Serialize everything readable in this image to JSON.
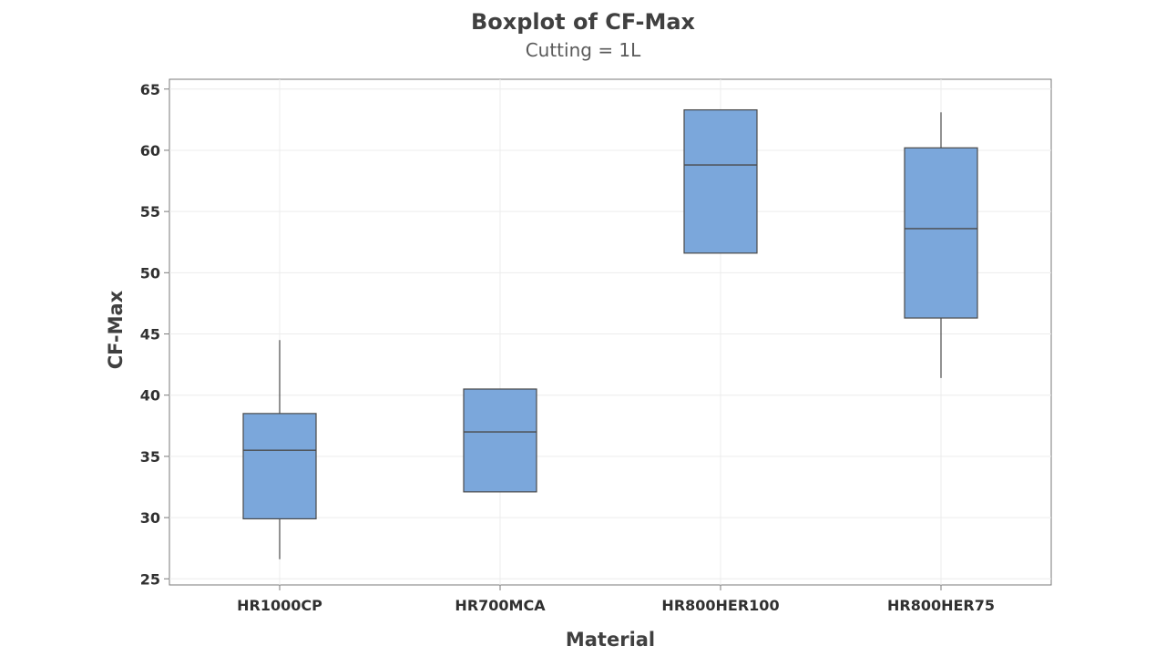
{
  "chart_data": {
    "type": "boxplot",
    "title": "Boxplot of CF-Max",
    "subtitle": "Cutting = 1L",
    "xlabel": "Material",
    "ylabel": "CF-Max",
    "ylim": [
      24.5,
      65.8
    ],
    "yticks": [
      25,
      30,
      35,
      40,
      45,
      50,
      55,
      60,
      65
    ],
    "grid": true,
    "box_color": "#7ba7db",
    "categories": [
      "HR1000CP",
      "HR700MCA",
      "HR800HER100",
      "HR800HER75"
    ],
    "boxes": [
      {
        "min": 26.6,
        "q1": 29.9,
        "median": 35.5,
        "q3": 38.5,
        "max": 44.5
      },
      {
        "min": 32.1,
        "q1": 32.1,
        "median": 37.0,
        "q3": 40.5,
        "max": 40.5
      },
      {
        "min": 51.6,
        "q1": 51.6,
        "median": 58.8,
        "q3": 63.3,
        "max": 63.3
      },
      {
        "min": 41.4,
        "q1": 46.3,
        "median": 53.6,
        "q3": 60.2,
        "max": 63.1
      }
    ]
  }
}
